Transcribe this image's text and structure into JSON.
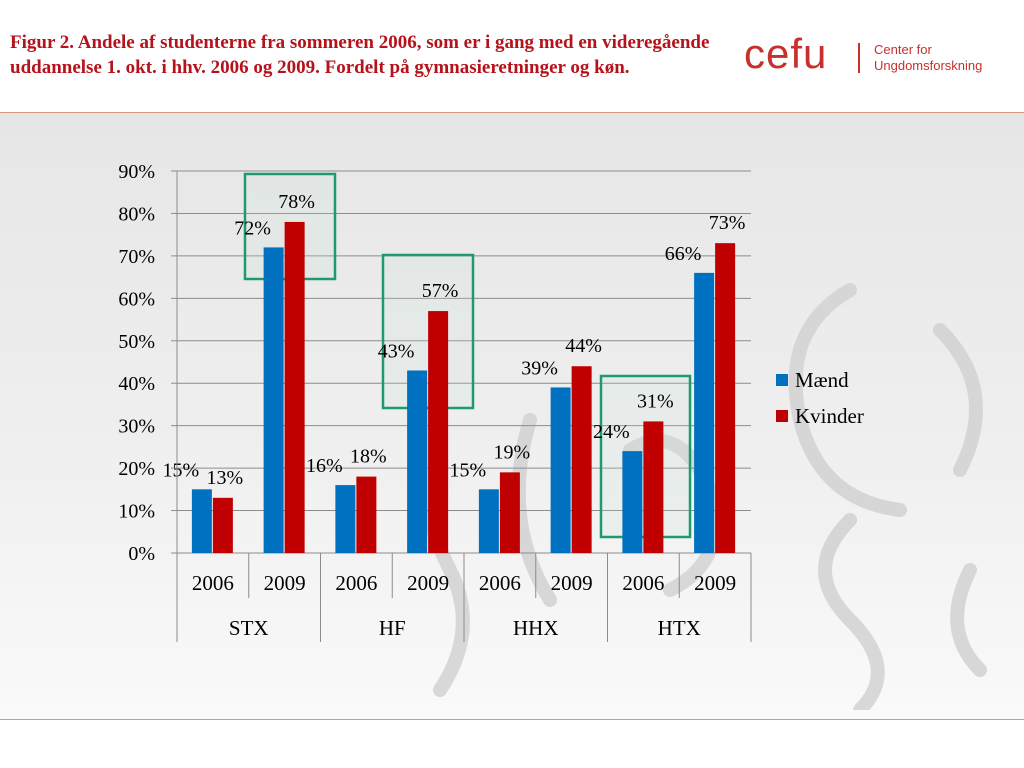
{
  "header": {
    "title": "Figur 2. Andele af studenterne fra sommeren 2006, som er i gang med en videregående uddannelse 1. okt. i hhv. 2006 og 2009. Fordelt på gymnasieretninger og køn."
  },
  "logo": {
    "wordmark": "cefu",
    "line1": "Center for",
    "line2": "Ungdomsforskning"
  },
  "colors": {
    "accent": "#b5121b",
    "series_maend": "#0070c0",
    "series_kvinder": "#c00000",
    "highlight_box": "#1e9a6e"
  },
  "chart_data": {
    "type": "bar",
    "groups": [
      "STX",
      "HF",
      "HHX",
      "HTX"
    ],
    "categories": [
      "2006",
      "2009",
      "2006",
      "2009",
      "2006",
      "2009",
      "2006",
      "2009"
    ],
    "series": [
      {
        "name": "Mænd",
        "values": [
          15,
          72,
          16,
          43,
          15,
          39,
          24,
          66
        ],
        "color": "#0070c0"
      },
      {
        "name": "Kvinder",
        "values": [
          13,
          78,
          18,
          57,
          19,
          44,
          31,
          73
        ],
        "color": "#c00000"
      }
    ],
    "ylim": [
      0,
      90
    ],
    "yticks": [
      "0%",
      "10%",
      "20%",
      "30%",
      "40%",
      "50%",
      "60%",
      "70%",
      "80%",
      "90%"
    ],
    "value_suffix": "%",
    "grid": true,
    "legend_position": "right",
    "highlighted_categories": [
      1,
      3,
      6
    ]
  }
}
